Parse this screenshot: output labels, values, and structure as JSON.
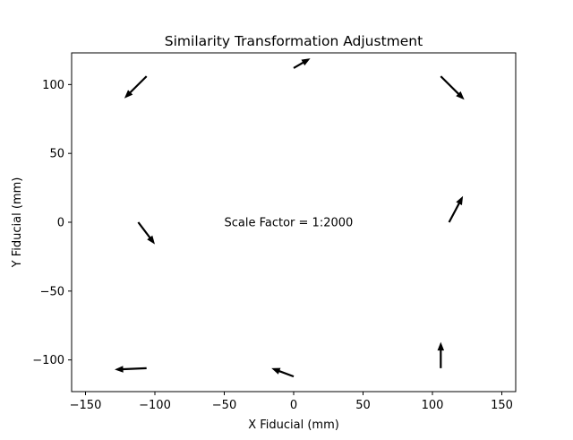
{
  "chart_data": {
    "type": "quiver",
    "title": "Similarity Transformation Adjustment",
    "xlabel": "X Fiducial (mm)",
    "ylabel": "Y Fiducial (mm)",
    "xlim": [
      -160,
      160
    ],
    "ylim": [
      -123,
      123
    ],
    "xticks": [
      -150,
      -100,
      -50,
      0,
      50,
      100,
      150
    ],
    "yticks": [
      -100,
      -50,
      0,
      50,
      100
    ],
    "xtick_labels": [
      "−150",
      "−100",
      "−50",
      "0",
      "50",
      "100",
      "150"
    ],
    "ytick_labels": [
      "−100",
      "−50",
      "0",
      "50",
      "100"
    ],
    "grid": false,
    "arrow_color": "#000000",
    "annotation": {
      "text": "Scale Factor = 1:2000",
      "x": -50,
      "y": 0
    },
    "vectors": [
      {
        "x": 0,
        "y": 112,
        "u": 12,
        "v": 7
      },
      {
        "x": -106,
        "y": 106,
        "u": -16,
        "v": -16
      },
      {
        "x": 106,
        "y": 106,
        "u": 17,
        "v": -17
      },
      {
        "x": -112,
        "y": 0,
        "u": 12,
        "v": -16
      },
      {
        "x": 112,
        "y": 0,
        "u": 10,
        "v": 19
      },
      {
        "x": -106,
        "y": -106,
        "u": -23,
        "v": -1
      },
      {
        "x": 0,
        "y": -112,
        "u": -16,
        "v": 6
      },
      {
        "x": 106,
        "y": -106,
        "u": 0,
        "v": 19
      }
    ]
  }
}
